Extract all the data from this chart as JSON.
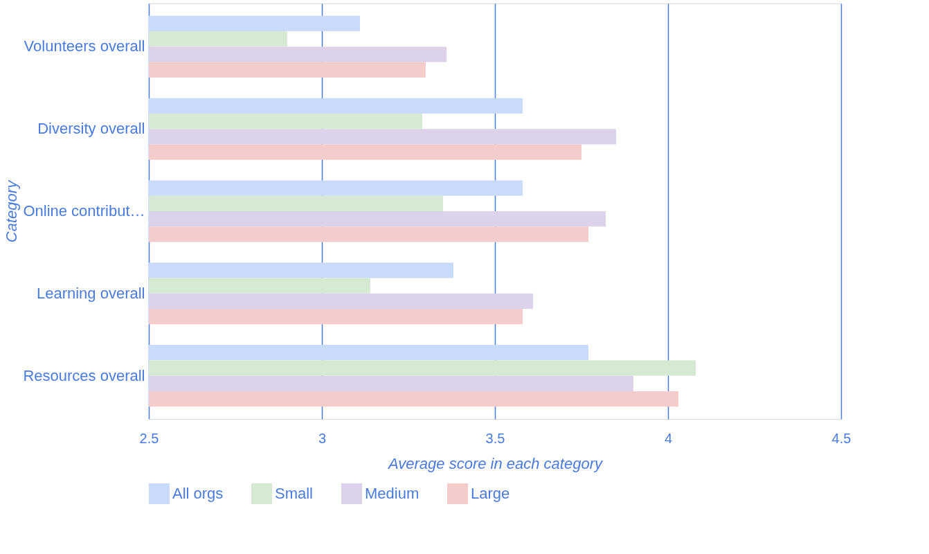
{
  "chart_data": {
    "type": "bar",
    "orientation": "horizontal",
    "xlabel": "Average score in each category",
    "ylabel": "Category",
    "categories": [
      "Volunteers overall",
      "Diversity overall",
      "Online contribut…",
      "Learning overall",
      "Resources overall"
    ],
    "series": [
      {
        "name": "All orgs",
        "color": "#c9dafa",
        "values": [
          3.11,
          3.58,
          3.58,
          3.38,
          3.77
        ]
      },
      {
        "name": "Small",
        "color": "#d6ead3",
        "values": [
          2.9,
          3.29,
          3.35,
          3.14,
          4.08
        ]
      },
      {
        "name": "Medium",
        "color": "#dcd3ea",
        "values": [
          3.36,
          3.85,
          3.82,
          3.61,
          3.9
        ]
      },
      {
        "name": "Large",
        "color": "#f4cccc",
        "values": [
          3.3,
          3.75,
          3.77,
          3.58,
          4.03
        ]
      }
    ],
    "xlim": [
      2.5,
      4.5
    ],
    "xticks": [
      2.5,
      3,
      3.5,
      4,
      4.5
    ],
    "grid": "x",
    "legend": "bottom"
  }
}
